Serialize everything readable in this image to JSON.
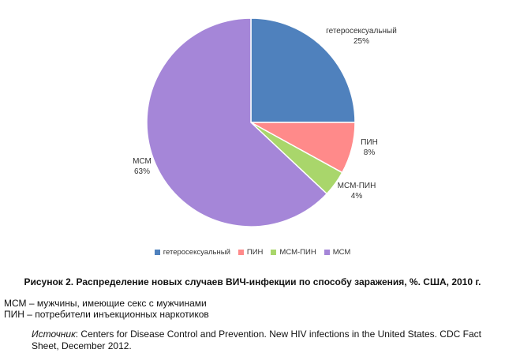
{
  "chart_data": {
    "type": "pie",
    "categories": [
      "гетеросексуальный",
      "ПИН",
      "МСМ-ПИН",
      "МСМ"
    ],
    "values": [
      25,
      8,
      4,
      63
    ],
    "value_labels": [
      "25%",
      "8%",
      "4%",
      "63%"
    ],
    "colors": [
      "#4f81bd",
      "#ff8a8a",
      "#a9d66b",
      "#a586d8"
    ],
    "start_angle": "12 o'clock",
    "direction": "clockwise",
    "legend_position": "bottom"
  },
  "caption": "Рисунок 2. Распределение новых случаев ВИЧ-инфекции по способу заражения, %. США, 2010 г.",
  "abbreviations": [
    "МСМ – мужчины, имеющие секс с мужчинами",
    "ПИН – потребители инъекционных наркотиков"
  ],
  "source": {
    "label": "Источник",
    "text": ": Centers for Disease Control and Prevention. New HIV infections in the United States. CDC Fact Sheet, December 2012."
  }
}
